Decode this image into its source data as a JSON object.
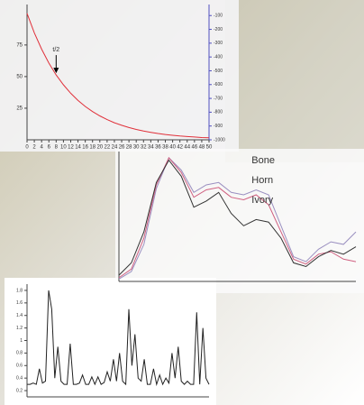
{
  "chart_data": [
    {
      "type": "line",
      "annotations": [
        "t/2"
      ],
      "x": [
        0,
        2,
        4,
        6,
        8,
        10,
        12,
        14,
        16,
        18,
        20,
        22,
        24,
        26,
        28,
        30,
        32,
        34,
        36,
        38,
        40,
        42,
        44,
        46,
        48,
        50
      ],
      "xlim": [
        0,
        50
      ],
      "xticks": [
        0,
        2,
        4,
        6,
        8,
        10,
        12,
        14,
        16,
        18,
        20,
        22,
        24,
        26,
        28,
        30,
        32,
        34,
        36,
        38,
        40,
        42,
        44,
        46,
        48,
        50
      ],
      "ylim": [
        0,
        107
      ],
      "yticks": [
        25,
        50,
        75
      ],
      "y2lim": [
        -1000,
        -20
      ],
      "y2ticks": [
        -100,
        -200,
        -300,
        -400,
        -500,
        -600,
        -700,
        -800,
        -900,
        -1000
      ],
      "series": [
        {
          "color": "#e0303a",
          "values": [
            100,
            84.6,
            71.7,
            60.7,
            51.3,
            43.5,
            36.8,
            31.1,
            26.4,
            22.3,
            18.9,
            16.0,
            13.5,
            11.5,
            9.7,
            8.2,
            6.9,
            5.9,
            5.0,
            4.2,
            3.6,
            3.0,
            2.6,
            2.2,
            1.8,
            1.6
          ]
        }
      ]
    },
    {
      "type": "line",
      "ylim": [
        0,
        105
      ],
      "series": [
        {
          "name": "Bone",
          "color": "#9a8fc0",
          "values": [
            2,
            8,
            30,
            75,
            100,
            90,
            72,
            78,
            80,
            72,
            70,
            74,
            70,
            45,
            20,
            16,
            26,
            32,
            30,
            40
          ]
        },
        {
          "name": "Horn",
          "color": "#d06080",
          "values": [
            3,
            10,
            35,
            78,
            100,
            88,
            68,
            74,
            76,
            68,
            66,
            70,
            62,
            40,
            18,
            14,
            22,
            24,
            18,
            16
          ]
        },
        {
          "name": "Ivory",
          "color": "#333333",
          "values": [
            5,
            15,
            40,
            80,
            98,
            85,
            60,
            65,
            72,
            55,
            45,
            50,
            48,
            35,
            15,
            12,
            20,
            25,
            22,
            28
          ]
        }
      ]
    },
    {
      "type": "line",
      "ylim": [
        0.1,
        1.9
      ],
      "yticks": [
        0.2,
        0.4,
        0.6,
        0.8,
        1,
        1.2,
        1.4,
        1.6,
        1.8
      ],
      "series": [
        {
          "color": "#222222",
          "values": [
            0.3,
            0.3,
            0.32,
            0.3,
            0.55,
            0.32,
            0.35,
            1.8,
            1.5,
            0.4,
            0.9,
            0.35,
            0.3,
            0.3,
            0.95,
            0.3,
            0.3,
            0.32,
            0.45,
            0.3,
            0.3,
            0.42,
            0.3,
            0.42,
            0.3,
            0.33,
            0.5,
            0.35,
            0.7,
            0.35,
            0.8,
            0.35,
            0.3,
            1.5,
            0.6,
            1.1,
            0.4,
            0.35,
            0.7,
            0.3,
            0.3,
            0.55,
            0.3,
            0.45,
            0.3,
            0.4,
            0.32,
            0.8,
            0.4,
            0.9,
            0.35,
            0.3,
            0.35,
            0.3,
            0.3,
            1.45,
            0.3,
            1.2,
            0.4,
            0.3
          ]
        }
      ]
    }
  ]
}
